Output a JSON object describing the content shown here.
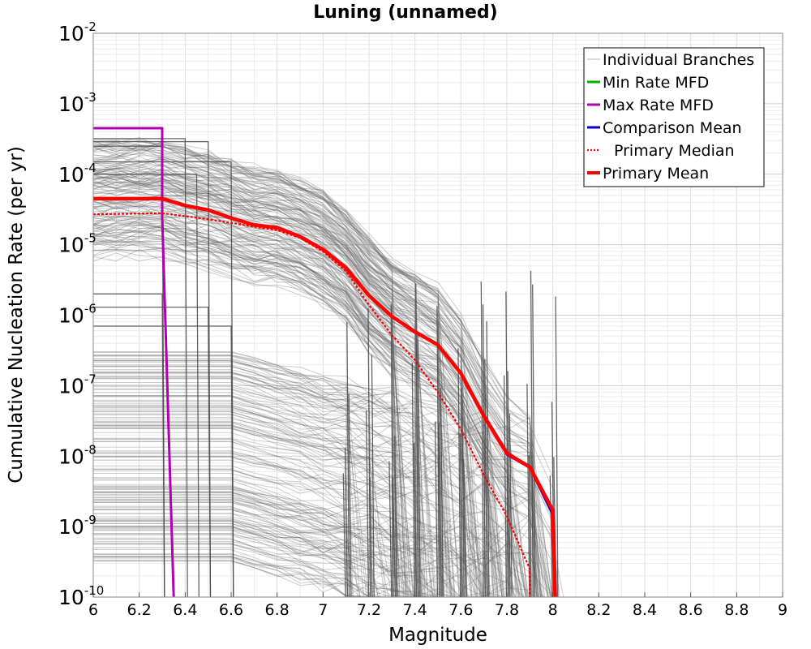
{
  "chart_data": {
    "type": "line",
    "title": "Luning (unnamed)",
    "xlabel": "Magnitude",
    "ylabel": "Cumulative Nucleation Rate (per yr)",
    "xlim": [
      6,
      9
    ],
    "ylim": [
      1e-10,
      0.01
    ],
    "yscale": "log",
    "grid": true,
    "legend_position": "top-right",
    "x_ticks": [
      "6",
      "6.2",
      "6.4",
      "6.6",
      "6.8",
      "7",
      "7.2",
      "7.4",
      "7.6",
      "7.8",
      "8",
      "8.2",
      "8.4",
      "8.6",
      "8.8",
      "9"
    ],
    "y_ticks": [
      {
        "base": "10",
        "exp": "-2",
        "value": 0.01
      },
      {
        "base": "10",
        "exp": "-3",
        "value": 0.001
      },
      {
        "base": "10",
        "exp": "-4",
        "value": 0.0001
      },
      {
        "base": "10",
        "exp": "-5",
        "value": 1e-05
      },
      {
        "base": "10",
        "exp": "-6",
        "value": 1e-06
      },
      {
        "base": "10",
        "exp": "-7",
        "value": 1e-07
      },
      {
        "base": "10",
        "exp": "-8",
        "value": 1e-08
      },
      {
        "base": "10",
        "exp": "-9",
        "value": 1e-09
      },
      {
        "base": "10",
        "exp": "-10",
        "value": 1e-10
      }
    ],
    "legend": [
      {
        "label": "Individual Branches",
        "color": "#b4b4b4",
        "style": "thin"
      },
      {
        "label": "Min Rate MFD",
        "color": "#00b000",
        "style": "solid"
      },
      {
        "label": "Max Rate MFD",
        "color": "#b000b0",
        "style": "solid"
      },
      {
        "label": "Comparison Mean",
        "color": "#0000d0",
        "style": "solid"
      },
      {
        "label": "Primary Median",
        "color": "#ff0000",
        "style": "dotted"
      },
      {
        "label": "Primary Mean",
        "color": "#ff0000",
        "style": "thick"
      }
    ],
    "series": [
      {
        "name": "Primary Mean",
        "color": "#ff0000",
        "x": [
          6.0,
          6.3,
          6.4,
          6.5,
          6.6,
          6.7,
          6.8,
          6.9,
          7.0,
          7.1,
          7.2,
          7.3,
          7.4,
          7.5,
          7.6,
          7.7,
          7.8,
          7.9,
          8.0,
          8.01
        ],
        "y": [
          4.5e-05,
          4.5e-05,
          3.6e-05,
          3.1e-05,
          2.4e-05,
          1.9e-05,
          1.75e-05,
          1.3e-05,
          8.6e-06,
          4.7e-06,
          1.9e-06,
          9.6e-07,
          5.8e-07,
          3.8e-07,
          1.5e-07,
          3.7e-08,
          1.1e-08,
          7e-09,
          1.7e-09,
          1e-10
        ]
      },
      {
        "name": "Primary Median",
        "color": "#ff0000",
        "x": [
          6.0,
          6.3,
          6.5,
          6.7,
          6.8,
          6.9,
          7.0,
          7.1,
          7.2,
          7.3,
          7.4,
          7.5,
          7.6,
          7.7,
          7.8,
          7.9,
          7.9
        ],
        "y": [
          2.7e-05,
          2.8e-05,
          2.3e-05,
          1.8e-05,
          1.6e-05,
          1.25e-05,
          8e-06,
          4.2e-06,
          1.4e-06,
          5.2e-07,
          2.3e-07,
          8e-08,
          2.4e-08,
          5.4e-09,
          1.4e-09,
          2.5e-10,
          1e-10
        ]
      },
      {
        "name": "Comparison Mean",
        "color": "#0000d0",
        "x": [
          7.7,
          7.8,
          7.9,
          8.0,
          8.01
        ],
        "y": [
          3.6e-08,
          1.05e-08,
          6.8e-09,
          1.45e-09,
          1e-10
        ]
      },
      {
        "name": "Max Rate MFD",
        "color": "#b000b0",
        "x": [
          6.0,
          6.3,
          6.3,
          6.35
        ],
        "y": [
          0.00045,
          0.00045,
          2.5e-05,
          1e-10
        ]
      }
    ]
  }
}
